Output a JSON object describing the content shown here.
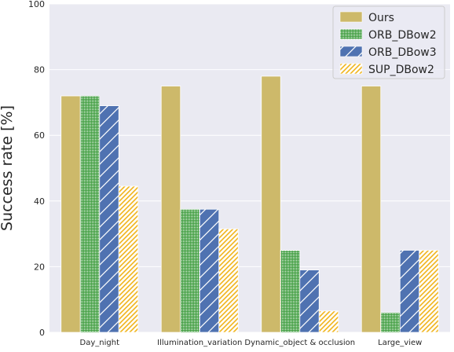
{
  "chart_data": {
    "type": "bar",
    "categories": [
      "Day_night",
      "Illumination_variation",
      "Dynamic_object & occlusion",
      "Large_view"
    ],
    "series": [
      {
        "name": "Ours",
        "values": [
          72,
          75,
          78,
          75
        ],
        "color": "#cdb96a",
        "pattern": "solid"
      },
      {
        "name": "ORB_DBow2",
        "values": [
          72,
          37.5,
          25,
          6
        ],
        "color": "#3d9c3d",
        "pattern": "grid"
      },
      {
        "name": "ORB_DBow3",
        "values": [
          69,
          37.5,
          19,
          25
        ],
        "color": "#4f72b1",
        "pattern": "diagonal"
      },
      {
        "name": "SUP_DBow2",
        "values": [
          44.5,
          31.5,
          6.5,
          25
        ],
        "color": "#f0b41d",
        "pattern": "dense-diagonal"
      }
    ],
    "xlabel": "",
    "ylabel": "Success rate [%]",
    "ylim": [
      0,
      100
    ],
    "yticks": [
      0,
      20,
      40,
      60,
      80,
      100
    ],
    "grid": true,
    "legend": "top-right"
  }
}
